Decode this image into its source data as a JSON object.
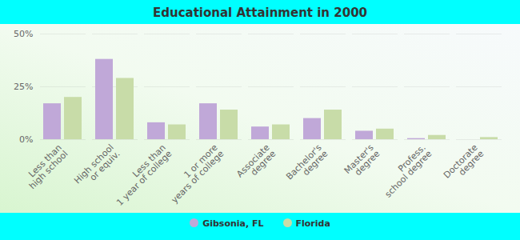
{
  "chart_data": {
    "type": "bar",
    "title": "Educational Attainment in 2000",
    "categories": [
      "Less than\nhigh school",
      "High school\nor equiv.",
      "Less than\n1 year of college",
      "1 or more\nyears of college",
      "Associate\ndegree",
      "Bachelor's\ndegree",
      "Master's\ndegree",
      "Profess.\nschool degree",
      "Doctorate\ndegree"
    ],
    "series": [
      {
        "name": "Gibsonia, FL",
        "color": "#c0a8d8",
        "values": [
          17,
          38,
          8,
          17,
          6,
          10,
          4,
          0.5,
          0
        ]
      },
      {
        "name": "Florida",
        "color": "#c8dca8",
        "values": [
          20,
          29,
          7,
          14,
          7,
          14,
          5,
          2,
          1
        ]
      }
    ],
    "ylim": [
      0,
      50
    ],
    "yticks": [
      {
        "value": 0,
        "label": "0%"
      },
      {
        "value": 25,
        "label": "25%"
      },
      {
        "value": 50,
        "label": "50%"
      }
    ],
    "grid": true,
    "legend": "bottom"
  }
}
